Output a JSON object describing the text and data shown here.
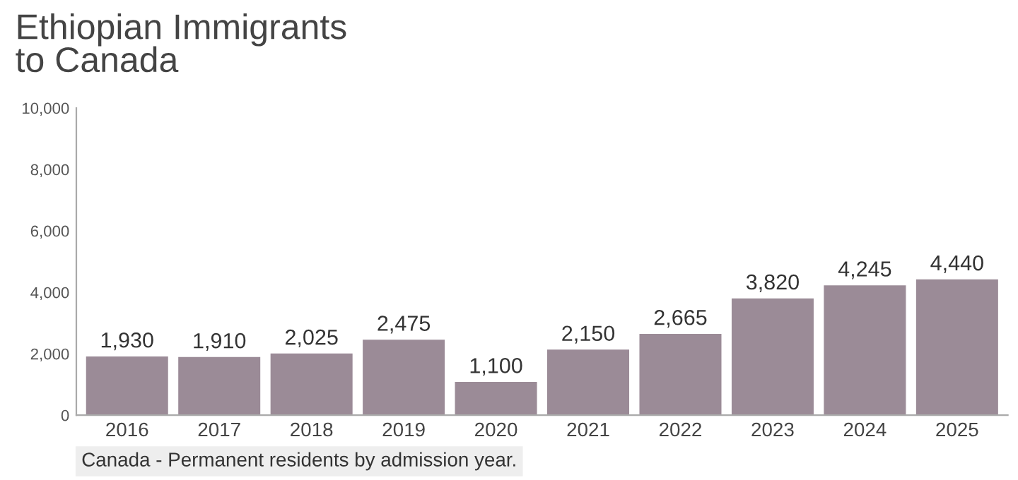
{
  "chart_data": {
    "type": "bar",
    "title": "Ethiopian Immigrants\nto Canada",
    "categories": [
      "2016",
      "2017",
      "2018",
      "2019",
      "2020",
      "2021",
      "2022",
      "2023",
      "2024",
      "2025"
    ],
    "values": [
      1930,
      1910,
      2025,
      2475,
      1100,
      2150,
      2665,
      3820,
      4245,
      4440
    ],
    "color": "#9b8b97",
    "ylim": [
      0,
      10000
    ],
    "yticks": [
      0,
      {
        "value": 2000,
        "label": "2,000"
      },
      {
        "value": 4000,
        "label": "4,000"
      },
      {
        "value": 6000,
        "label": "6,000"
      },
      {
        "value": 8000,
        "label": "8,000"
      },
      {
        "value": 10000,
        "label": "10,000"
      }
    ],
    "value_labels": [
      "1,930",
      "1,910",
      "2,025",
      "2,475",
      "1,100",
      "2,150",
      "2,665",
      "3,820",
      "4,245",
      "4,440"
    ],
    "annotations": [
      "Canada - Permanent residents by admission year."
    ],
    "grid": false
  }
}
